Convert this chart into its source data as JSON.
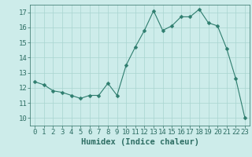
{
  "x": [
    0,
    1,
    2,
    3,
    4,
    5,
    6,
    7,
    8,
    9,
    10,
    11,
    12,
    13,
    14,
    15,
    16,
    17,
    18,
    19,
    20,
    21,
    22,
    23
  ],
  "y": [
    12.4,
    12.2,
    11.8,
    11.7,
    11.5,
    11.3,
    11.5,
    11.5,
    12.3,
    11.5,
    13.5,
    14.7,
    15.8,
    17.1,
    15.8,
    16.1,
    16.7,
    16.7,
    17.2,
    16.3,
    16.1,
    14.6,
    12.6,
    10.0
  ],
  "line_color": "#2e7d6e",
  "marker": "D",
  "marker_size": 2.5,
  "bg_color": "#cdecea",
  "grid_color": "#a8d5d0",
  "xlabel": "Humidex (Indice chaleur)",
  "xlim": [
    -0.5,
    23.5
  ],
  "ylim": [
    9.5,
    17.5
  ],
  "yticks": [
    10,
    11,
    12,
    13,
    14,
    15,
    16,
    17
  ],
  "xticks": [
    0,
    1,
    2,
    3,
    4,
    5,
    6,
    7,
    8,
    9,
    10,
    11,
    12,
    13,
    14,
    15,
    16,
    17,
    18,
    19,
    20,
    21,
    22,
    23
  ],
  "tick_color": "#2e6e64",
  "label_color": "#2e6e64",
  "xlabel_fontsize": 7.5,
  "tick_fontsize": 6.5
}
